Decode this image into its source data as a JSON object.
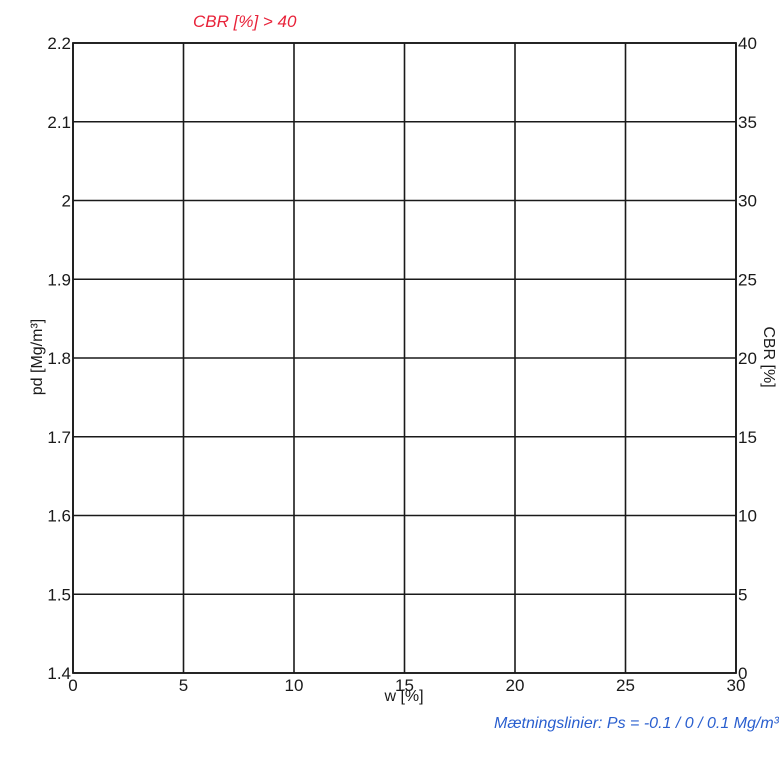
{
  "chart_data": {
    "type": "scatter",
    "title": "CBR [%] > 40",
    "xlabel": "w [%]",
    "ylabel": "pd [Mg/m³]",
    "y2label": "CBR [%]",
    "xlim": [
      0,
      30
    ],
    "ylim": [
      1.4,
      2.2
    ],
    "y2lim": [
      0,
      40
    ],
    "x_ticks": [
      0,
      5,
      10,
      15,
      20,
      25,
      30
    ],
    "y_ticks": [
      1.4,
      1.5,
      1.6,
      1.7,
      1.8,
      1.9,
      2,
      2.1,
      2.2
    ],
    "y2_ticks": [
      0,
      5,
      10,
      15,
      20,
      25,
      30,
      35,
      40
    ],
    "grid": true,
    "series": [],
    "annotation": "Mætningslinier: Ps = -0.1 / 0 / 0.1 Mg/m³"
  },
  "colors": {
    "criterion": "#e8233a",
    "annotation": "#2a5fcf",
    "grid": "#1a1a1a"
  }
}
